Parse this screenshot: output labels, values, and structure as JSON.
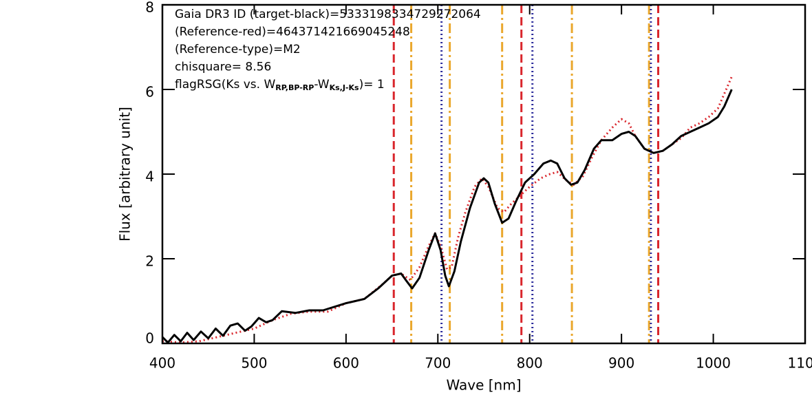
{
  "chart_data": {
    "type": "line",
    "xlabel": "Wave [nm]",
    "ylabel": "Flux [arbitrary unit]",
    "xlim": [
      400,
      1100
    ],
    "ylim": [
      0,
      8
    ],
    "xticks": [
      400,
      500,
      600,
      700,
      800,
      900,
      1000,
      1100
    ],
    "yticks": [
      0,
      2,
      4,
      6,
      8
    ],
    "annotations": [
      [
        "Gaia DR3 ID (target-black)=5333198334729272064"
      ],
      [
        "(Reference-red)=464371421669045248"
      ],
      [
        "(Reference-type)=M2"
      ],
      [
        "chisquare= 8.56"
      ],
      [
        "flagRSG(Ks vs. W",
        "RP,BP-RP",
        "-W",
        "Ks,J-Ks",
        ")= 1"
      ]
    ],
    "vlines": [
      {
        "x": 652,
        "color": "#d9262c",
        "style": "dashed"
      },
      {
        "x": 791,
        "color": "#d9262c",
        "style": "dashed"
      },
      {
        "x": 940,
        "color": "#d9262c",
        "style": "dashed"
      },
      {
        "x": 671,
        "color": "#eaa72c",
        "style": "dashdot"
      },
      {
        "x": 713,
        "color": "#eaa72c",
        "style": "dashdot"
      },
      {
        "x": 770,
        "color": "#eaa72c",
        "style": "dashdot"
      },
      {
        "x": 846,
        "color": "#eaa72c",
        "style": "dashdot"
      },
      {
        "x": 930,
        "color": "#eaa72c",
        "style": "dashdot"
      },
      {
        "x": 704,
        "color": "#2b2b9b",
        "style": "dotted"
      },
      {
        "x": 803,
        "color": "#2b2b9b",
        "style": "dotted"
      },
      {
        "x": 932,
        "color": "#2b2b9b",
        "style": "dotted"
      }
    ],
    "series": [
      {
        "color": "#d9262c",
        "style": "dotted",
        "x": [
          400,
          420,
          440,
          460,
          480,
          500,
          520,
          540,
          560,
          580,
          600,
          620,
          640,
          650,
          660,
          670,
          680,
          690,
          697,
          703,
          710,
          715,
          722,
          730,
          740,
          748,
          755,
          765,
          772,
          780,
          790,
          800,
          812,
          822,
          830,
          840,
          848,
          858,
          868,
          878,
          890,
          900,
          908,
          915,
          925,
          935,
          945,
          955,
          965,
          975,
          985,
          995,
          1005,
          1012,
          1020
        ],
        "values": [
          0.05,
          0.02,
          0.05,
          0.15,
          0.25,
          0.35,
          0.55,
          0.7,
          0.75,
          0.75,
          0.95,
          1.05,
          1.4,
          1.6,
          1.65,
          1.5,
          1.8,
          2.3,
          2.6,
          2.3,
          1.75,
          1.8,
          2.5,
          3.1,
          3.7,
          3.9,
          3.7,
          3.2,
          3.1,
          3.3,
          3.5,
          3.7,
          3.9,
          4.0,
          4.05,
          3.85,
          3.75,
          3.95,
          4.4,
          4.8,
          5.1,
          5.3,
          5.2,
          4.9,
          4.6,
          4.5,
          4.55,
          4.7,
          4.85,
          5.1,
          5.2,
          5.35,
          5.55,
          5.9,
          6.3
        ]
      },
      {
        "color": "#000000",
        "style": "solid",
        "x": [
          400,
          406,
          413,
          420,
          427,
          434,
          442,
          450,
          458,
          466,
          474,
          482,
          490,
          497,
          505,
          513,
          520,
          530,
          545,
          560,
          575,
          600,
          620,
          635,
          650,
          660,
          665,
          672,
          680,
          690,
          697,
          703,
          708,
          712,
          718,
          725,
          735,
          745,
          750,
          755,
          762,
          770,
          777,
          785,
          795,
          805,
          815,
          823,
          830,
          838,
          845,
          852,
          860,
          870,
          878,
          890,
          900,
          908,
          915,
          925,
          935,
          945,
          955,
          965,
          975,
          985,
          995,
          1005,
          1012,
          1020
        ],
        "values": [
          0.15,
          0.02,
          0.2,
          0.05,
          0.25,
          0.08,
          0.28,
          0.12,
          0.35,
          0.18,
          0.42,
          0.47,
          0.3,
          0.4,
          0.6,
          0.5,
          0.55,
          0.76,
          0.72,
          0.78,
          0.78,
          0.95,
          1.05,
          1.3,
          1.6,
          1.65,
          1.5,
          1.3,
          1.55,
          2.2,
          2.6,
          2.2,
          1.6,
          1.35,
          1.7,
          2.4,
          3.2,
          3.8,
          3.9,
          3.8,
          3.3,
          2.85,
          2.95,
          3.35,
          3.8,
          4.0,
          4.25,
          4.32,
          4.25,
          3.9,
          3.75,
          3.8,
          4.1,
          4.6,
          4.8,
          4.8,
          4.95,
          5.0,
          4.9,
          4.6,
          4.5,
          4.55,
          4.7,
          4.9,
          5.0,
          5.1,
          5.2,
          5.35,
          5.6,
          6.0
        ]
      }
    ]
  }
}
